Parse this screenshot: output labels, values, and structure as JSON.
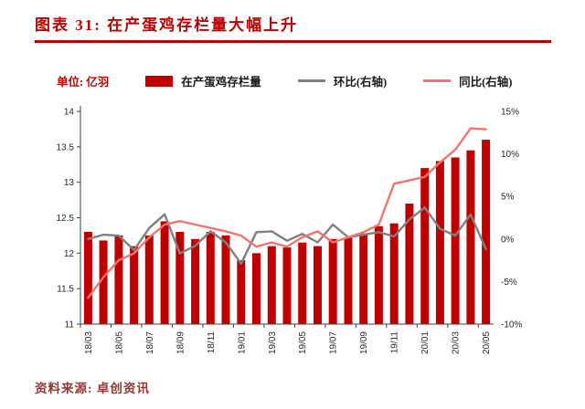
{
  "header": {
    "title": "图表 31: 在产蛋鸡存栏量大幅上升"
  },
  "unit_label": "单位: 亿羽",
  "legend": [
    {
      "label": "在产蛋鸡存栏量",
      "type": "bar",
      "color": "#C00000"
    },
    {
      "label": "环比(右轴)",
      "type": "line",
      "color": "#808080"
    },
    {
      "label": "同比(右轴)",
      "type": "line",
      "color": "#F4736F"
    }
  ],
  "source": "资料来源: 卓创资讯",
  "chart_data": {
    "type": "bar+line",
    "title": "在产蛋鸡存栏量大幅上升",
    "categories": [
      "18/03",
      "18/04",
      "18/05",
      "18/06",
      "18/07",
      "18/08",
      "18/09",
      "18/10",
      "18/11",
      "18/12",
      "19/01",
      "19/02",
      "19/03",
      "19/04",
      "19/05",
      "19/06",
      "19/07",
      "19/08",
      "19/09",
      "19/10",
      "19/11",
      "19/12",
      "20/01",
      "20/02",
      "20/03",
      "20/04",
      "20/05"
    ],
    "x_label_every": 2,
    "left_axis": {
      "min": 11,
      "max": 14,
      "labels": [
        "14",
        "13.5",
        "13",
        "12.5",
        "12",
        "11.5",
        "11"
      ]
    },
    "right_axis": {
      "min": -10,
      "max": 15,
      "labels": [
        "15%",
        "10%",
        "5%",
        "0%",
        "-5%",
        "-10%"
      ]
    },
    "series": [
      {
        "name": "在产蛋鸡存栏量",
        "type": "bar",
        "axis": "left",
        "color": "#C00000",
        "values": [
          12.3,
          12.18,
          12.25,
          12.1,
          12.25,
          12.45,
          12.3,
          12.2,
          12.3,
          12.25,
          11.9,
          12.0,
          12.1,
          12.08,
          12.15,
          12.1,
          12.2,
          12.22,
          12.28,
          12.38,
          12.42,
          12.7,
          13.2,
          13.3,
          13.35,
          13.45,
          13.6
        ]
      },
      {
        "name": "环比(右轴)",
        "type": "line",
        "axis": "right",
        "color": "#808080",
        "values": [
          0.0,
          0.5,
          0.4,
          -1.3,
          1.3,
          2.9,
          -1.7,
          -0.8,
          0.9,
          -0.4,
          -2.9,
          0.8,
          0.9,
          -0.2,
          0.6,
          -0.4,
          1.7,
          0.2,
          0.5,
          0.8,
          0.3,
          2.3,
          3.7,
          1.2,
          0.4,
          2.9,
          -1.2
        ]
      },
      {
        "name": "同比(右轴)",
        "type": "line",
        "axis": "right",
        "color": "#F4736F",
        "values": [
          -6.9,
          -4.5,
          -2.5,
          -1.7,
          0.2,
          1.7,
          2.1,
          1.7,
          1.3,
          0.9,
          0.4,
          -0.9,
          -0.4,
          -0.9,
          0.2,
          0.9,
          -0.4,
          0.2,
          0.8,
          1.7,
          6.5,
          6.9,
          7.3,
          9.0,
          10.5,
          13.0,
          12.9
        ]
      }
    ]
  }
}
